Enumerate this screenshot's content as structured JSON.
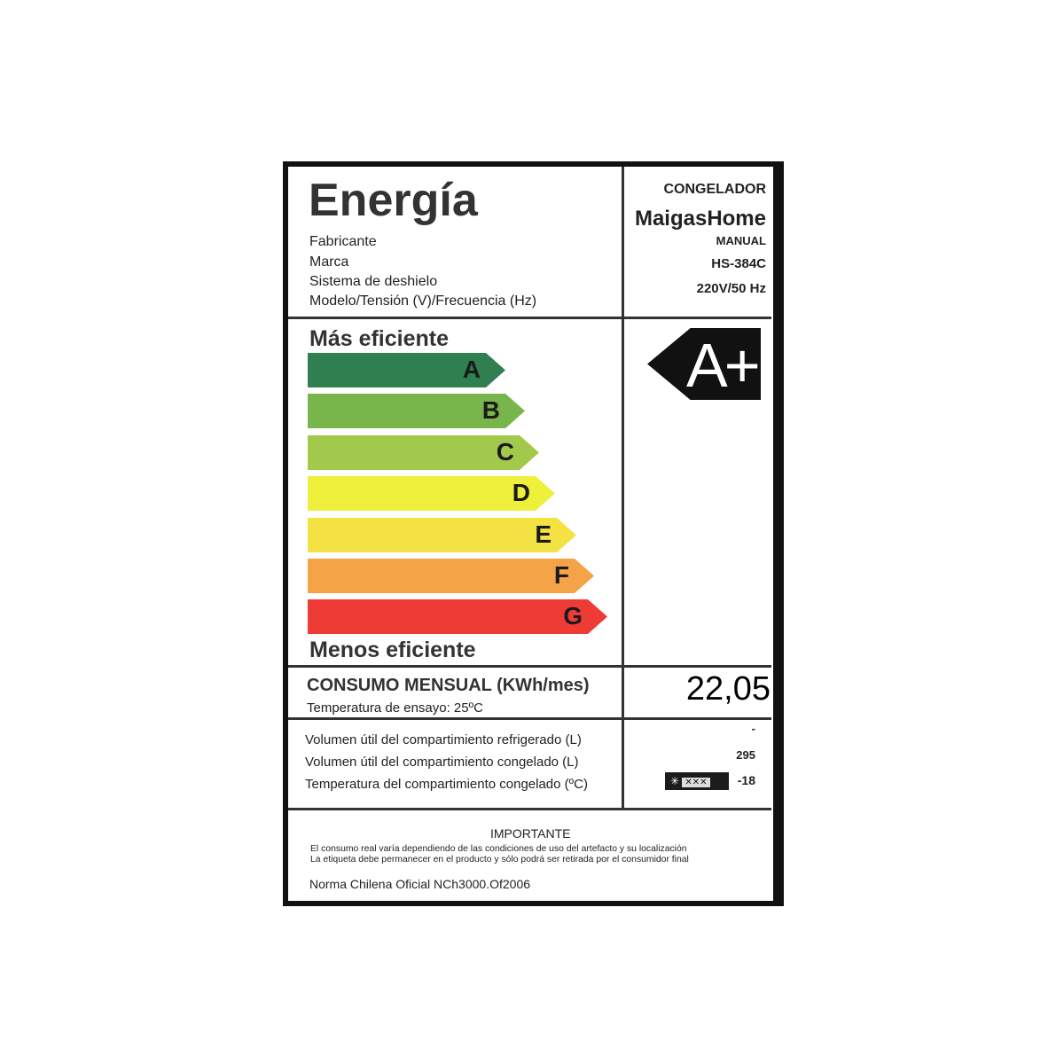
{
  "header": {
    "title": "Energía",
    "labels": [
      "Fabricante",
      "Marca",
      "Sistema de deshielo",
      "Modelo/Tensión (V)/Frecuencia (Hz)"
    ],
    "product_type": "CONGELADOR",
    "brand": "MaigasHome",
    "defrost": "MANUAL",
    "model": "HS-384C",
    "voltage": "220V/50 Hz"
  },
  "scale": {
    "top_label": "Más eficiente",
    "bottom_label": "Menos eficiente",
    "classes": [
      {
        "letter": "A",
        "color": "#2f7f50"
      },
      {
        "letter": "B",
        "color": "#78b54a"
      },
      {
        "letter": "C",
        "color": "#a3c94c"
      },
      {
        "letter": "D",
        "color": "#eef03c"
      },
      {
        "letter": "E",
        "color": "#f4e243"
      },
      {
        "letter": "F",
        "color": "#f5a347"
      },
      {
        "letter": "G",
        "color": "#ee3b36"
      }
    ],
    "rating": "A+"
  },
  "consumption": {
    "label": "CONSUMO MENSUAL (KWh/mes)",
    "sub": "Temperatura de ensayo: 25ºC",
    "value": "22,05"
  },
  "specs": [
    {
      "label": "Volumen útil del compartimiento refrigerado (L)",
      "value": "-"
    },
    {
      "label": "Volumen útil del compartimiento congelado (L)",
      "value": "295"
    },
    {
      "label": "Temperatura del compartimiento congelado (ºC)",
      "value": "-18"
    }
  ],
  "footer": {
    "title": "IMPORTANTE",
    "line1": "El consumo real varía dependiendo de las condiciones de uso del artefacto y su localización",
    "line2": "La etiqueta debe permanecer en el producto y sólo podrá ser retirada por el consumidor final",
    "norm": "Norma Chilena Oficial NCh3000.Of2006"
  }
}
